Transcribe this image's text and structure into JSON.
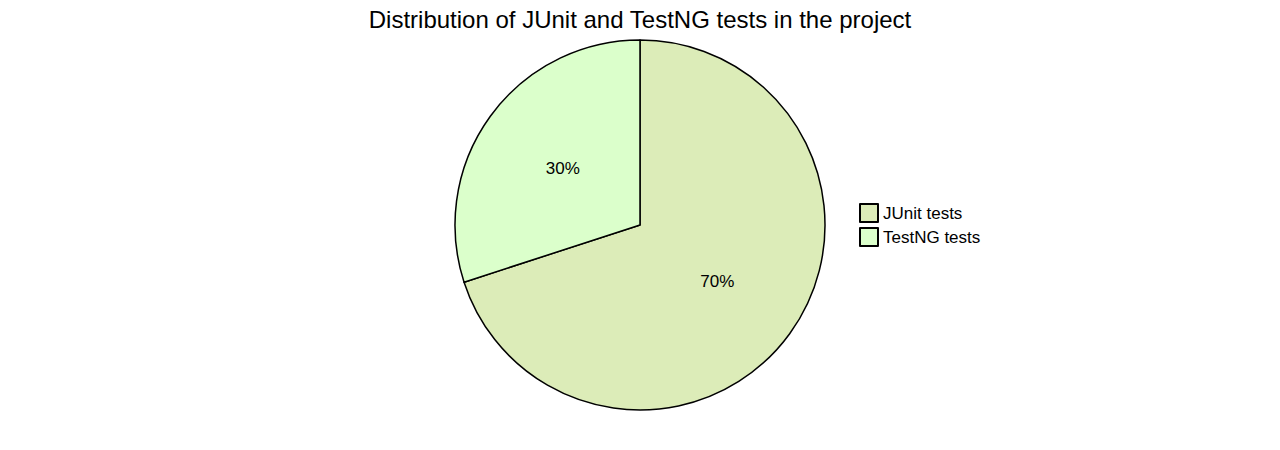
{
  "chart_data": {
    "type": "pie",
    "title": "Distribution of JUnit and TestNG tests in the project",
    "categories": [
      "JUnit tests",
      "TestNG tests"
    ],
    "values": [
      70,
      30
    ],
    "value_labels": [
      "70%",
      "30%"
    ],
    "colors": [
      "#dcecb8",
      "#dbffcb"
    ],
    "data_labels": true,
    "legend": "right"
  }
}
